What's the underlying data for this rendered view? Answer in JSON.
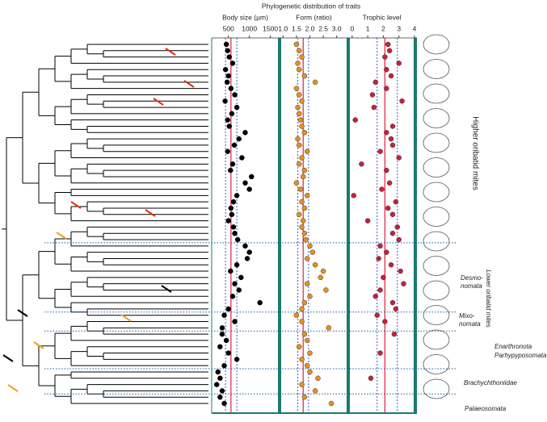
{
  "title": "Phylogenetic distribution of traits",
  "groups": {
    "higher": "Higher oribatid mites",
    "lower": "Lower oribatid mites",
    "desmo": [
      "Desmo-",
      "nomata"
    ],
    "mixo": [
      "Mixo-",
      "nomata"
    ],
    "enar": "Enarthronota",
    "parhy": "Parhypyposomata",
    "brachy": "Brachychthoniidae",
    "palaeo": "Palaeosomata"
  },
  "chart_data": [
    {
      "type": "dot",
      "title": "Body size (µm)",
      "color": "#000000",
      "xlim": [
        100,
        1700
      ],
      "xticks": [
        500,
        1000,
        1500
      ],
      "mean_line": 560,
      "quartile_lines": [
        430,
        700
      ],
      "values": [
        450,
        480,
        520,
        600,
        430,
        500,
        470,
        560,
        650,
        420,
        700,
        580,
        480,
        520,
        900,
        750,
        640,
        480,
        820,
        600,
        550,
        1050,
        900,
        1000,
        700,
        620,
        560,
        580,
        500,
        620,
        650,
        720,
        900,
        1000,
        950,
        700,
        550,
        800,
        650,
        750,
        600,
        1250,
        500,
        400,
        650,
        350,
        350,
        450,
        300,
        500,
        700,
        400,
        250,
        300,
        220,
        350,
        300,
        400
      ]
    },
    {
      "type": "dot",
      "title": "Form (ratio)",
      "color": "#e8901e",
      "xlim": [
        0.9,
        3.4
      ],
      "xticks": [
        {
          "value": 1,
          "label": "1.0"
        },
        1.5,
        {
          "value": 2,
          "label": "2.0"
        },
        2.5,
        {
          "value": 3,
          "label": "3.0"
        }
      ],
      "mean_line": 1.75,
      "quartile_lines": [
        1.55,
        1.95
      ],
      "values": [
        1.5,
        1.6,
        1.7,
        1.55,
        1.6,
        1.8,
        2.2,
        1.5,
        1.6,
        1.7,
        1.55,
        1.6,
        1.65,
        1.7,
        1.8,
        1.55,
        1.6,
        1.9,
        1.7,
        1.6,
        1.8,
        1.75,
        1.5,
        1.65,
        1.9,
        1.7,
        1.8,
        1.6,
        1.75,
        1.7,
        1.8,
        1.85,
        2.0,
        2.1,
        1.9,
        2.2,
        2.5,
        2.4,
        1.9,
        2.6,
        2.0,
        1.8,
        1.7,
        1.5,
        1.7,
        2.7,
        1.8,
        1.9,
        1.6,
        2.0,
        1.7,
        1.9,
        2.0,
        2.3,
        1.7,
        2.2,
        1.8,
        2.8
      ]
    },
    {
      "type": "dot",
      "title": "Trophic level",
      "color": "#c8203a",
      "xlim": [
        -0.2,
        4.0
      ],
      "xticks": [
        0,
        1,
        2,
        3,
        4
      ],
      "mean_line": 2.1,
      "quartile_lines": [
        1.6,
        2.9
      ],
      "values": [
        2.3,
        2.4,
        2.1,
        3.0,
        2.2,
        2.5,
        1.5,
        2.2,
        1.3,
        3.2,
        1.4,
        null,
        0.2,
        2.6,
        2.2,
        2.5,
        2.6,
        1.8,
        3.0,
        0.6,
        2.2,
        null,
        2.4,
        1.9,
        0.1,
        2.8,
        2.3,
        2.6,
        1.0,
        2.9,
        2.6,
        3.0,
        1.8,
        2.2,
        1.7,
        2.5,
        3.1,
        2.0,
        3.3,
        1.8,
        1.5,
        2.6,
        2.8,
        1.6,
        2.1,
        null,
        2.7,
        null,
        null,
        1.8,
        null,
        null,
        null,
        1.2,
        null,
        null,
        null,
        null
      ]
    }
  ]
}
